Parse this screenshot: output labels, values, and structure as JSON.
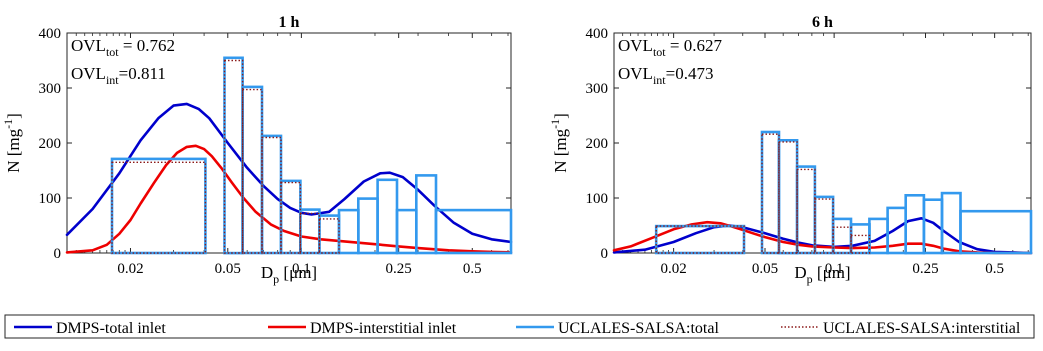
{
  "chart_data": [
    {
      "type": "line",
      "title": "1 h",
      "xlabel": "D_p [μm]",
      "ylabel": "N [mg^-1]",
      "x_scale": "log",
      "xlim": [
        0.011,
        0.72
      ],
      "ylim": [
        0,
        400
      ],
      "xticks": [
        0.02,
        0.05,
        0.1,
        0.25,
        0.5
      ],
      "xtick_labels": [
        "0.02",
        "0.05",
        "0.1",
        "0.25",
        "0.5"
      ],
      "yticks": [
        0,
        100,
        200,
        300,
        400
      ],
      "ytick_labels": [
        "0",
        "100",
        "200",
        "300",
        "400"
      ],
      "annotations": {
        "ovl_tot": {
          "label": "OVL",
          "sub": "tot",
          "value": " = 0.762"
        },
        "ovl_int": {
          "label": "OVL",
          "sub": "int",
          "value": "=0.811"
        }
      },
      "bin_edges": [
        0.0168,
        0.0405,
        0.0485,
        0.0575,
        0.069,
        0.0825,
        0.099,
        0.1185,
        0.1425,
        0.171,
        0.205,
        0.246,
        0.295,
        0.355,
        0.72
      ],
      "series": [
        {
          "name": "DMPS-total inlet",
          "kind": "curve",
          "color": "#0000cc",
          "x": [
            0.011,
            0.014,
            0.018,
            0.022,
            0.026,
            0.03,
            0.034,
            0.038,
            0.042,
            0.05,
            0.06,
            0.07,
            0.08,
            0.09,
            0.1,
            0.11,
            0.13,
            0.15,
            0.18,
            0.21,
            0.23,
            0.26,
            0.3,
            0.35,
            0.42,
            0.5,
            0.6,
            0.72
          ],
          "y": [
            33,
            80,
            145,
            205,
            245,
            268,
            271,
            262,
            245,
            200,
            155,
            122,
            98,
            82,
            73,
            70,
            75,
            98,
            130,
            145,
            146,
            138,
            115,
            86,
            55,
            35,
            25,
            20
          ]
        },
        {
          "name": "DMPS-interstitial inlet",
          "kind": "curve",
          "color": "#ee0000",
          "x": [
            0.011,
            0.014,
            0.016,
            0.018,
            0.02,
            0.022,
            0.025,
            0.028,
            0.031,
            0.034,
            0.037,
            0.04,
            0.043,
            0.047,
            0.052,
            0.058,
            0.065,
            0.075,
            0.085,
            0.1,
            0.12,
            0.15,
            0.2,
            0.25,
            0.3,
            0.4,
            0.5,
            0.6,
            0.72
          ],
          "y": [
            1,
            5,
            15,
            35,
            60,
            90,
            128,
            160,
            182,
            193,
            195,
            189,
            176,
            155,
            128,
            100,
            75,
            52,
            40,
            30,
            25,
            21,
            16,
            12,
            9,
            5,
            3,
            2,
            1
          ]
        },
        {
          "name": "UCLALES-SALSA:total",
          "kind": "bins",
          "color": "#3399ee",
          "values": [
            171,
            0,
            355,
            302,
            213,
            131,
            79,
            68,
            78,
            99,
            133,
            78,
            141,
            78,
            39
          ]
        },
        {
          "name": "UCLALES-SALSA:interstitial",
          "kind": "bins-dotted",
          "color": "#8b1a1a",
          "values": [
            165,
            0,
            350,
            297,
            210,
            128,
            72,
            62,
            0,
            0,
            0,
            0,
            0,
            0,
            0
          ]
        }
      ]
    },
    {
      "type": "line",
      "title": "6 h",
      "xlabel": "D_p [μm]",
      "ylabel": "",
      "x_scale": "log",
      "xlim": [
        0.011,
        0.72
      ],
      "ylim": [
        0,
        400
      ],
      "xticks": [
        0.02,
        0.05,
        0.1,
        0.25,
        0.5
      ],
      "xtick_labels": [
        "0.02",
        "0.05",
        "0.1",
        "0.25",
        "0.5"
      ],
      "yticks": [
        0,
        100,
        200,
        300,
        400
      ],
      "ytick_labels": [
        "0",
        "100",
        "200",
        "300",
        "400"
      ],
      "annotations": {
        "ovl_tot": {
          "label": "OVL",
          "sub": "tot",
          "value": " = 0.627"
        },
        "ovl_int": {
          "label": "OVL",
          "sub": "int",
          "value": "=0.473"
        }
      },
      "bin_edges": [
        0.0168,
        0.0405,
        0.0485,
        0.0575,
        0.069,
        0.0825,
        0.099,
        0.1185,
        0.1425,
        0.171,
        0.205,
        0.246,
        0.295,
        0.355,
        0.72
      ],
      "series": [
        {
          "name": "DMPS-total inlet",
          "kind": "curve",
          "color": "#0000cc",
          "x": [
            0.011,
            0.015,
            0.02,
            0.025,
            0.03,
            0.035,
            0.04,
            0.05,
            0.06,
            0.07,
            0.08,
            0.1,
            0.12,
            0.15,
            0.18,
            0.21,
            0.24,
            0.27,
            0.3,
            0.35,
            0.42,
            0.5,
            0.72
          ],
          "y": [
            1,
            6,
            20,
            36,
            47,
            50,
            47,
            36,
            26,
            19,
            14,
            11,
            13,
            22,
            40,
            58,
            63,
            55,
            40,
            20,
            7,
            2,
            0
          ]
        },
        {
          "name": "DMPS-interstitial inlet",
          "kind": "curve",
          "color": "#ee0000",
          "x": [
            0.011,
            0.013,
            0.016,
            0.02,
            0.024,
            0.028,
            0.032,
            0.036,
            0.04,
            0.045,
            0.05,
            0.06,
            0.07,
            0.08,
            0.1,
            0.12,
            0.15,
            0.18,
            0.21,
            0.24,
            0.27,
            0.3,
            0.35,
            0.42,
            0.5,
            0.72
          ],
          "y": [
            5,
            12,
            27,
            43,
            52,
            56,
            54,
            48,
            42,
            35,
            29,
            20,
            15,
            12,
            10,
            9,
            10,
            13,
            17,
            17,
            13,
            8,
            3,
            1,
            0,
            0
          ]
        },
        {
          "name": "UCLALES-SALSA:total",
          "kind": "bins",
          "color": "#3399ee",
          "values": [
            49,
            0,
            220,
            205,
            157,
            102,
            62,
            52,
            62,
            82,
            105,
            97,
            109,
            76,
            38
          ]
        },
        {
          "name": "UCLALES-SALSA:interstitial",
          "kind": "bins-dotted",
          "color": "#8b1a1a",
          "values": [
            49,
            0,
            216,
            202,
            152,
            98,
            47,
            32,
            0,
            0,
            0,
            0,
            0,
            0,
            0
          ]
        }
      ]
    }
  ],
  "legend": {
    "placement": "bottom",
    "items": [
      {
        "label": "DMPS-total inlet",
        "color": "#0000cc",
        "style": "solid"
      },
      {
        "label": "DMPS-interstitial inlet",
        "color": "#ee0000",
        "style": "solid"
      },
      {
        "label": "UCLALES-SALSA:total",
        "color": "#3399ee",
        "style": "solid"
      },
      {
        "label": "UCLALES-SALSA:interstitial",
        "color": "#8b1a1a",
        "style": "dotted"
      }
    ]
  },
  "ylabel_parts": {
    "main": "N [mg",
    "sup": "-1",
    "close": "]"
  },
  "xlabel_parts": {
    "main": "D",
    "sub": "p",
    "unit": " [μm]"
  }
}
